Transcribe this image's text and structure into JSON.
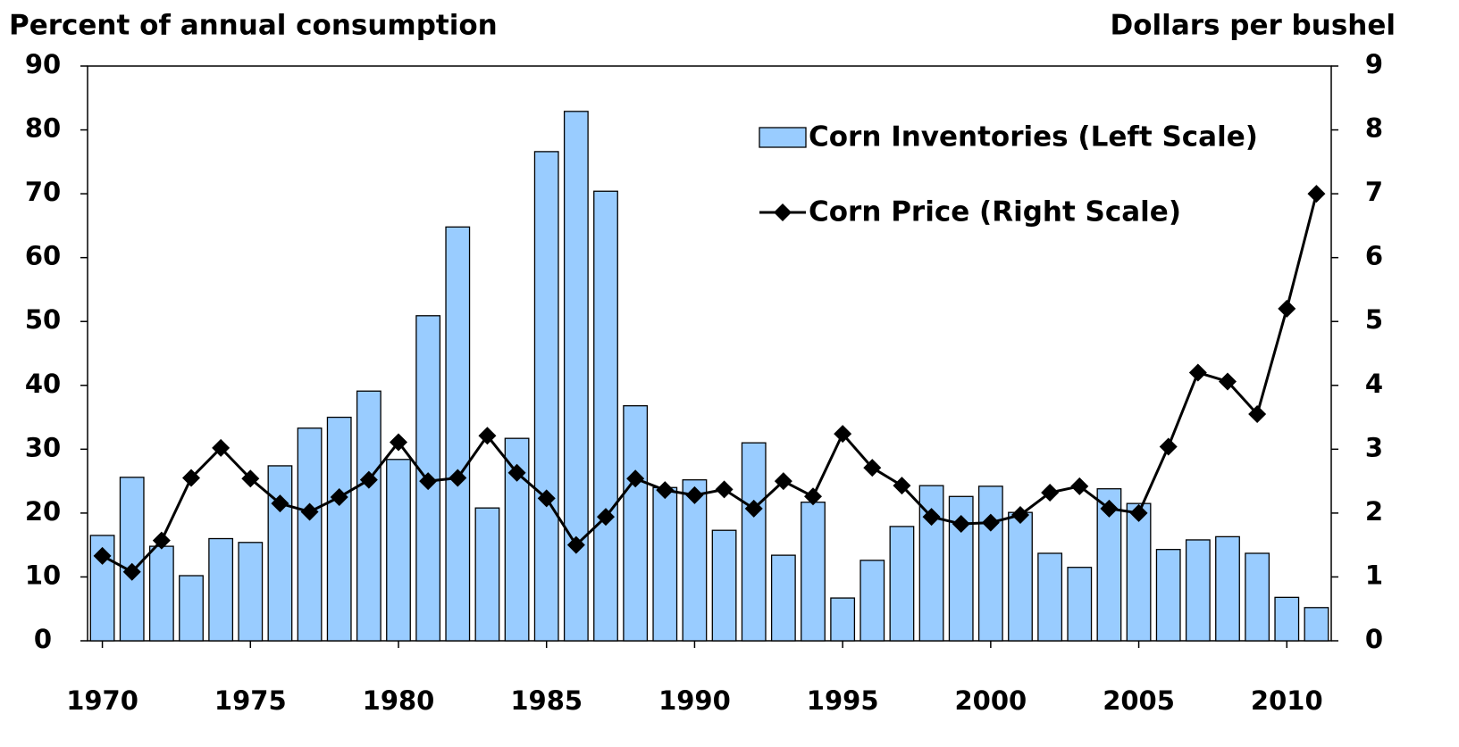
{
  "chart_data": {
    "type": "bar_line",
    "y_label": "Percent of annual consumption",
    "y2_label": "Dollars per bushel",
    "x": [
      1970,
      1971,
      1972,
      1973,
      1974,
      1975,
      1976,
      1977,
      1978,
      1979,
      1980,
      1981,
      1982,
      1983,
      1984,
      1985,
      1986,
      1987,
      1988,
      1989,
      1990,
      1991,
      1992,
      1993,
      1994,
      1995,
      1996,
      1997,
      1998,
      1999,
      2000,
      2001,
      2002,
      2003,
      2004,
      2005,
      2006,
      2007,
      2008,
      2009,
      2010,
      2011
    ],
    "xlim": [
      1969.5,
      2011.5
    ],
    "xticks": [
      1970,
      1975,
      1980,
      1985,
      1990,
      1995,
      2000,
      2005,
      2010
    ],
    "ylim": [
      0,
      90
    ],
    "yticks": [
      0,
      10,
      20,
      30,
      40,
      50,
      60,
      70,
      80,
      90
    ],
    "y2lim": [
      0,
      9
    ],
    "y2ticks": [
      0,
      1,
      2,
      3,
      4,
      5,
      6,
      7,
      8,
      9
    ],
    "legend": "upper right",
    "series": [
      {
        "name": "Corn Inventories (Left Scale)",
        "kind": "bar",
        "color": "#99ccff",
        "values": [
          16.5,
          25.6,
          14.8,
          10.2,
          16,
          15.4,
          27.4,
          33.3,
          35,
          39.1,
          28.4,
          50.9,
          64.8,
          20.8,
          31.7,
          76.6,
          82.9,
          70.4,
          36.8,
          24,
          25.2,
          17.3,
          31,
          13.4,
          21.7,
          6.7,
          12.6,
          17.9,
          24.3,
          22.6,
          24.2,
          20.1,
          13.7,
          11.5,
          23.8,
          21.5,
          14.3,
          15.8,
          16.3,
          13.7,
          6.8,
          5.2
        ]
      },
      {
        "name": "Corn Price (Right Scale)",
        "kind": "line",
        "color": "#000000",
        "axis": "y2",
        "values": [
          1.33,
          1.08,
          1.57,
          2.55,
          3.02,
          2.54,
          2.15,
          2.02,
          2.25,
          2.52,
          3.11,
          2.5,
          2.55,
          3.21,
          2.63,
          2.23,
          1.5,
          1.94,
          2.54,
          2.36,
          2.28,
          2.37,
          2.07,
          2.5,
          2.26,
          3.24,
          2.71,
          2.43,
          1.94,
          1.83,
          1.85,
          1.97,
          2.32,
          2.42,
          2.07,
          2.0,
          3.04,
          4.2,
          4.06,
          3.55,
          5.2,
          7.0
        ]
      }
    ]
  }
}
